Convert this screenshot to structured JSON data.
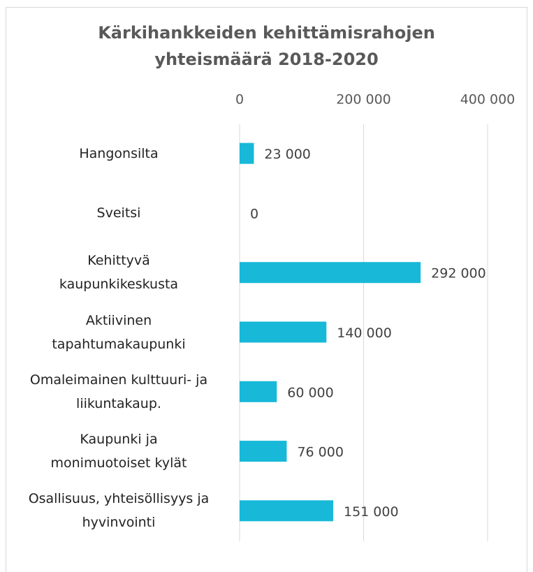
{
  "chart_data": {
    "type": "bar",
    "orientation": "horizontal",
    "title": "Kärkihankkeiden kehittämisrahojen yhteismäärä 2018-2020",
    "categories": [
      "Hangonsilta",
      "Sveitsi",
      "Kehittyvä\nkaupunkikeskusta",
      "Aktiivinen\ntapahtumakaupunki",
      "Omaleimainen kulttuuri- ja\nliikuntakaup.",
      "Kaupunki ja\nmonimuotoiset kylät",
      "Osallisuus, yhteisöllisyys ja\nhyvinvointi"
    ],
    "values": [
      23000,
      0,
      292000,
      140000,
      60000,
      76000,
      151000
    ],
    "value_labels": [
      "23 000",
      "0",
      "292 000",
      "140 000",
      "60 000",
      "76 000",
      "151 000"
    ],
    "color": "#17b8d8",
    "xlim": [
      0,
      400000
    ],
    "xticks": [
      0,
      {
        "value": 200000,
        "label": "200 000"
      },
      {
        "value": 400000,
        "label": "400 000"
      }
    ],
    "grid": true
  }
}
